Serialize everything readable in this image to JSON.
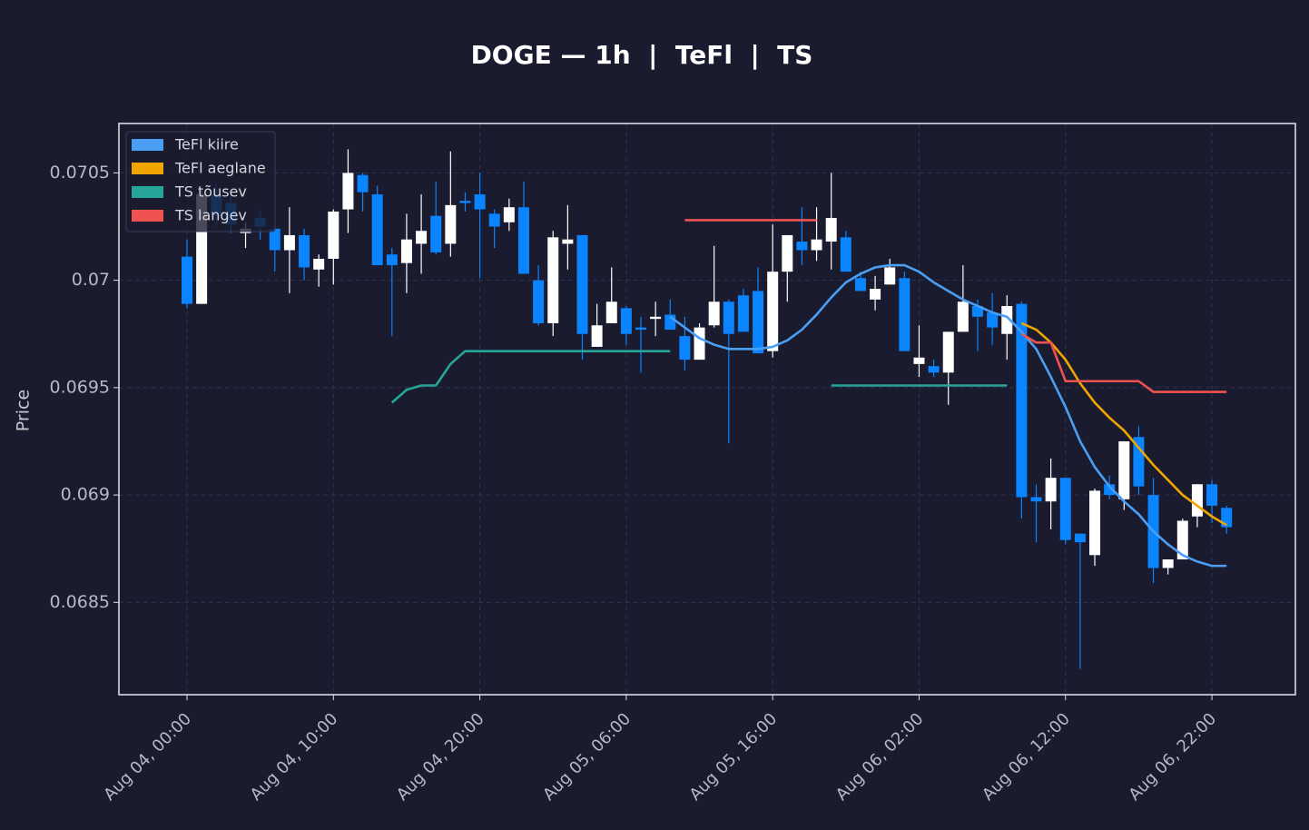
{
  "chart_data": {
    "type": "candlestick",
    "title": "DOGE — 1h  |  TeFl  |  TS",
    "y_label": "Price",
    "x": [
      0,
      1,
      2,
      3,
      4,
      5,
      6,
      7,
      8,
      9,
      10,
      11,
      12,
      13,
      14,
      15,
      16,
      17,
      18,
      19,
      20,
      21,
      22,
      23,
      24,
      25,
      26,
      27,
      28,
      29,
      30,
      31,
      32,
      33,
      34,
      35,
      36,
      37,
      38,
      39,
      40,
      41,
      42,
      43,
      44,
      45,
      46,
      47,
      48,
      49,
      50,
      51,
      52,
      53,
      54,
      55,
      56,
      57,
      58,
      59,
      60,
      61,
      62,
      63,
      64,
      65,
      66,
      67,
      68,
      69,
      70,
      71
    ],
    "open": [
      0.07011,
      0.06989,
      0.0704,
      0.07036,
      0.07022,
      0.07029,
      0.07024,
      0.07014,
      0.07021,
      0.07005,
      0.0701,
      0.07033,
      0.07049,
      0.0704,
      0.07012,
      0.07008,
      0.07017,
      0.0703,
      0.07017,
      0.07037,
      0.0704,
      0.07031,
      0.07027,
      0.07034,
      0.07,
      0.0698,
      0.07017,
      0.07021,
      0.06969,
      0.0698,
      0.06987,
      0.06978,
      0.06982,
      0.06984,
      0.06974,
      0.06963,
      0.06979,
      0.0699,
      0.06993,
      0.06995,
      0.06967,
      0.07004,
      0.07018,
      0.07014,
      0.07018,
      0.0702,
      0.07001,
      0.06991,
      0.06998,
      0.07001,
      0.06961,
      0.0696,
      0.06957,
      0.06976,
      0.06988,
      0.06985,
      0.06975,
      0.06989,
      0.06899,
      0.06897,
      0.06908,
      0.06882,
      0.06872,
      0.06905,
      0.06898,
      0.06927,
      0.069,
      0.06866,
      0.0687,
      0.0689,
      0.06905,
      0.06894
    ],
    "high": [
      0.07019,
      0.07042,
      0.07045,
      0.0704,
      0.07027,
      0.07033,
      0.07026,
      0.07034,
      0.07024,
      0.07012,
      0.07033,
      0.07061,
      0.0705,
      0.07044,
      0.07015,
      0.07031,
      0.0704,
      0.07046,
      0.0706,
      0.07041,
      0.0705,
      0.07033,
      0.07038,
      0.07046,
      0.07007,
      0.07023,
      0.07035,
      0.07021,
      0.06989,
      0.07006,
      0.06988,
      0.06983,
      0.0699,
      0.06991,
      0.06983,
      0.0698,
      0.07016,
      0.06991,
      0.06996,
      0.07006,
      0.07026,
      0.07021,
      0.07034,
      0.07034,
      0.0705,
      0.07023,
      0.07004,
      0.07002,
      0.0701,
      0.07004,
      0.06979,
      0.06963,
      0.06976,
      0.07007,
      0.06991,
      0.06994,
      0.06993,
      0.0699,
      0.06905,
      0.06917,
      0.06908,
      0.06882,
      0.06903,
      0.06909,
      0.06925,
      0.06932,
      0.06908,
      0.0687,
      0.06889,
      0.06905,
      0.06907,
      0.06895
    ],
    "low": [
      0.06987,
      0.06989,
      0.07025,
      0.07022,
      0.07015,
      0.07019,
      0.07004,
      0.06994,
      0.07,
      0.06997,
      0.06998,
      0.07022,
      0.07032,
      0.07007,
      0.06974,
      0.06994,
      0.07003,
      0.07012,
      0.07011,
      0.07032,
      0.07001,
      0.07015,
      0.07023,
      0.07003,
      0.06979,
      0.06974,
      0.07005,
      0.06963,
      0.06969,
      0.0698,
      0.0697,
      0.06957,
      0.06974,
      0.06977,
      0.06958,
      0.06963,
      0.06978,
      0.06924,
      0.06976,
      0.06966,
      0.06964,
      0.0699,
      0.07007,
      0.07009,
      0.07005,
      0.07004,
      0.06995,
      0.06986,
      0.06998,
      0.06967,
      0.06955,
      0.06955,
      0.06942,
      0.06976,
      0.06967,
      0.0697,
      0.06963,
      0.06889,
      0.06878,
      0.06884,
      0.06877,
      0.06819,
      0.06867,
      0.06898,
      0.06893,
      0.069,
      0.06859,
      0.06863,
      0.0687,
      0.06885,
      0.06887,
      0.06882
    ],
    "close": [
      0.06989,
      0.0704,
      0.0703,
      0.07026,
      0.07024,
      0.07025,
      0.07014,
      0.07021,
      0.07006,
      0.0701,
      0.07032,
      0.0705,
      0.07041,
      0.07007,
      0.07007,
      0.07019,
      0.07023,
      0.07013,
      0.07035,
      0.07036,
      0.07033,
      0.07025,
      0.07034,
      0.07003,
      0.0698,
      0.0702,
      0.07019,
      0.06975,
      0.06979,
      0.0699,
      0.06975,
      0.06977,
      0.06983,
      0.06977,
      0.06963,
      0.06978,
      0.0699,
      0.06975,
      0.06976,
      0.06966,
      0.07004,
      0.07021,
      0.07014,
      0.07019,
      0.07029,
      0.07004,
      0.06995,
      0.06996,
      0.07006,
      0.06967,
      0.06964,
      0.06957,
      0.06976,
      0.0699,
      0.06983,
      0.06978,
      0.06988,
      0.06899,
      0.06897,
      0.06908,
      0.06879,
      0.06878,
      0.06902,
      0.069,
      0.06925,
      0.06904,
      0.06866,
      0.0687,
      0.06888,
      0.06905,
      0.06895,
      0.06885
    ],
    "up_color": "#ffffff",
    "down_color": "#0a84ff",
    "series": [
      {
        "name": "TeFl kiire",
        "color": "#4a9ff5",
        "values": [
          null,
          null,
          null,
          null,
          null,
          null,
          null,
          null,
          null,
          null,
          null,
          null,
          null,
          null,
          null,
          null,
          null,
          null,
          null,
          null,
          null,
          null,
          null,
          null,
          null,
          null,
          null,
          null,
          null,
          null,
          null,
          null,
          null,
          0.06983,
          0.06978,
          0.06973,
          0.0697,
          0.06968,
          0.06968,
          0.06968,
          0.06969,
          0.06972,
          0.06977,
          0.06984,
          0.06992,
          0.06999,
          0.07003,
          0.07006,
          0.07007,
          0.07007,
          0.07004,
          0.06999,
          0.06995,
          0.06991,
          0.06988,
          0.06985,
          0.06983,
          0.06976,
          0.06968,
          0.06955,
          0.06941,
          0.06925,
          0.06913,
          0.06904,
          0.06897,
          0.06891,
          0.06883,
          0.06877,
          0.06872,
          0.06869,
          0.06867,
          0.06867
        ]
      },
      {
        "name": "TeFl aeglane",
        "color": "#f0a500",
        "values": [
          null,
          null,
          null,
          null,
          null,
          null,
          null,
          null,
          null,
          null,
          null,
          null,
          null,
          null,
          null,
          null,
          null,
          null,
          null,
          null,
          null,
          null,
          null,
          null,
          null,
          null,
          null,
          null,
          null,
          null,
          null,
          null,
          null,
          null,
          null,
          null,
          null,
          null,
          null,
          null,
          null,
          null,
          null,
          null,
          null,
          null,
          null,
          null,
          null,
          null,
          null,
          null,
          null,
          null,
          null,
          null,
          null,
          0.0698,
          0.06977,
          0.06971,
          0.06963,
          0.06952,
          0.06943,
          0.06936,
          0.0693,
          0.06922,
          0.06914,
          0.06907,
          0.069,
          0.06895,
          0.0689,
          0.06886
        ]
      },
      {
        "name": "TS tõusev",
        "color": "#26a69a",
        "values": [
          null,
          null,
          null,
          null,
          null,
          null,
          null,
          null,
          null,
          null,
          null,
          null,
          null,
          null,
          0.06943,
          0.06949,
          0.06951,
          0.06951,
          0.06961,
          0.06967,
          0.06967,
          0.06967,
          0.06967,
          0.06967,
          0.06967,
          0.06967,
          0.06967,
          0.06967,
          0.06967,
          0.06967,
          0.06967,
          0.06967,
          0.06967,
          0.06967,
          null,
          null,
          null,
          null,
          null,
          null,
          null,
          null,
          null,
          null,
          0.06951,
          0.06951,
          0.06951,
          0.06951,
          0.06951,
          0.06951,
          0.06951,
          0.06951,
          0.06951,
          0.06951,
          0.06951,
          0.06951,
          0.06951,
          null,
          null,
          null,
          null,
          null,
          null,
          null,
          null,
          null,
          null,
          null,
          null,
          null,
          null,
          null
        ]
      },
      {
        "name": "TS langev",
        "color": "#ef5350",
        "values": [
          null,
          null,
          null,
          null,
          null,
          null,
          null,
          null,
          null,
          null,
          null,
          null,
          null,
          null,
          null,
          null,
          null,
          null,
          null,
          null,
          null,
          null,
          null,
          null,
          null,
          null,
          null,
          null,
          null,
          null,
          null,
          null,
          null,
          null,
          0.07028,
          0.07028,
          0.07028,
          0.07028,
          0.07028,
          0.07028,
          0.07028,
          0.07028,
          0.07028,
          0.07028,
          null,
          null,
          null,
          null,
          null,
          null,
          null,
          null,
          null,
          null,
          null,
          null,
          null,
          0.06975,
          0.06971,
          0.06971,
          0.06953,
          0.06953,
          0.06953,
          0.06953,
          0.06953,
          0.06953,
          0.06948,
          0.06948,
          0.06948,
          0.06948,
          0.06948,
          0.06948
        ]
      }
    ],
    "xlim": [
      -4.65,
      75.7
    ],
    "ylim": [
      0.06807,
      0.07073
    ],
    "xticks": [
      {
        "value": 0,
        "label": "Aug 04, 00:00"
      },
      {
        "value": 10,
        "label": "Aug 04, 10:00"
      },
      {
        "value": 20,
        "label": "Aug 04, 20:00"
      },
      {
        "value": 30,
        "label": "Aug 05, 06:00"
      },
      {
        "value": 40,
        "label": "Aug 05, 16:00"
      },
      {
        "value": 50,
        "label": "Aug 06, 02:00"
      },
      {
        "value": 60,
        "label": "Aug 06, 12:00"
      },
      {
        "value": 70,
        "label": "Aug 06, 22:00"
      }
    ],
    "yticks": [
      0.0685,
      0.069,
      0.0695,
      0.07,
      0.0705
    ],
    "grid": true,
    "legend": "upper left"
  }
}
